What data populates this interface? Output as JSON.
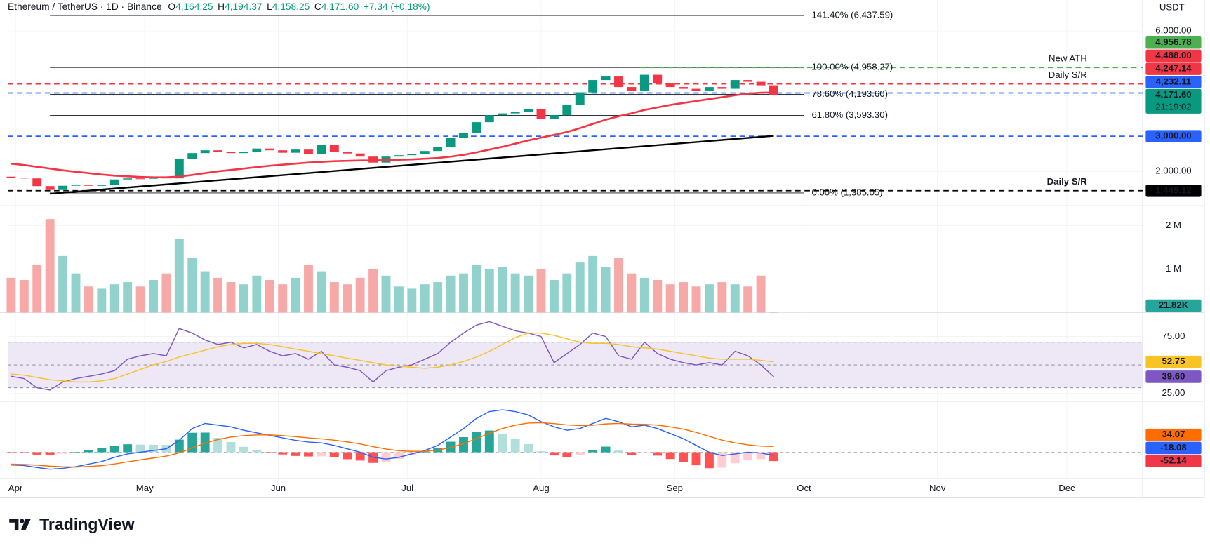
{
  "header": {
    "symbol": "Ethereum / TetherUS · 1D · Binance",
    "ohlc": [
      {
        "key": "O",
        "value": "4,164.25"
      },
      {
        "key": "H",
        "value": "4,194.37"
      },
      {
        "key": "L",
        "value": "4,158.25"
      },
      {
        "key": "C",
        "value": "4,171.60"
      }
    ],
    "change": "+7.34 (+0.18%)"
  },
  "currency": "USDT",
  "brand": "TradingView",
  "chart_data": [
    {
      "type": "candlestick",
      "x": [
        -1,
        2,
        5,
        8,
        11,
        14,
        17,
        20,
        23,
        26,
        29,
        32,
        35,
        38,
        41,
        44,
        47,
        50,
        53,
        56,
        59,
        62,
        65,
        68,
        71,
        74,
        77,
        80,
        83,
        86,
        89,
        92,
        95,
        98,
        101,
        104,
        107,
        110,
        113,
        116,
        119,
        122,
        125,
        128,
        131,
        134,
        137,
        140,
        143,
        146,
        149,
        152,
        155,
        158,
        161,
        164,
        167,
        170,
        173,
        176
      ],
      "open": [
        1850,
        1820,
        1800,
        1580,
        1470,
        1590,
        1620,
        1590,
        1610,
        1770,
        1800,
        1790,
        1840,
        1800,
        2350,
        2520,
        2600,
        2550,
        2520,
        2560,
        2650,
        2600,
        2530,
        2620,
        2500,
        2750,
        2560,
        2510,
        2420,
        2250,
        2420,
        2460,
        2500,
        2580,
        2700,
        2950,
        3100,
        3400,
        3600,
        3650,
        3700,
        3780,
        3500,
        3600,
        3900,
        4250,
        4600,
        4700,
        4400,
        4300,
        4750,
        4500,
        4400,
        4350,
        4300,
        4400,
        4350,
        4600,
        4550,
        4450
      ],
      "close": [
        1820,
        1800,
        1580,
        1470,
        1590,
        1620,
        1590,
        1610,
        1770,
        1800,
        1790,
        1840,
        1800,
        2350,
        2520,
        2600,
        2550,
        2520,
        2560,
        2650,
        2600,
        2530,
        2620,
        2500,
        2750,
        2560,
        2510,
        2420,
        2250,
        2420,
        2460,
        2500,
        2580,
        2700,
        2950,
        3100,
        3400,
        3600,
        3650,
        3700,
        3780,
        3500,
        3600,
        3900,
        4250,
        4600,
        4700,
        4400,
        4300,
        4750,
        4500,
        4400,
        4350,
        4300,
        4400,
        4350,
        4600,
        4550,
        4450,
        4171.6
      ],
      "up_color": "#089981",
      "down_color": "#f23645",
      "ema": {
        "color": "#f23645",
        "last_label": "4,247.14",
        "values": [
          2220,
          2180,
          2130,
          2080,
          2030,
          1990,
          1950,
          1910,
          1880,
          1860,
          1840,
          1830,
          1830,
          1850,
          1900,
          1950,
          2000,
          2040,
          2080,
          2120,
          2160,
          2190,
          2220,
          2250,
          2270,
          2290,
          2300,
          2310,
          2310,
          2320,
          2330,
          2340,
          2360,
          2380,
          2420,
          2470,
          2540,
          2620,
          2700,
          2790,
          2880,
          2960,
          3040,
          3120,
          3230,
          3350,
          3470,
          3570,
          3650,
          3750,
          3820,
          3890,
          3950,
          4000,
          4060,
          4110,
          4170,
          4210,
          4240,
          4247.14
        ]
      },
      "trendline": {
        "x": [
          8,
          176
        ],
        "values": [
          1363,
          3011
        ]
      },
      "fib_x": [
        8,
        183
      ],
      "fib_levels": [
        {
          "value": 6437.59,
          "label": "141.40% (6,437.59)"
        },
        {
          "value": 4958.27,
          "label": "100.00% (4,958.27)"
        },
        {
          "value": 4193.6,
          "label": "78.60% (4,193.60)"
        },
        {
          "value": 3593.3,
          "label": "61.80% (3,593.30)"
        },
        {
          "value": 1385.05,
          "label": "0.00% (1,385.05)"
        }
      ],
      "levels": [
        {
          "value": 4956.78,
          "label": "4,956.78",
          "color": "#4caf50",
          "note": "New ATH",
          "x_start": 145
        },
        {
          "value": 4488,
          "label": "4,488.00",
          "color": "#f23645",
          "note": "Daily S/R"
        },
        {
          "value": 4232.11,
          "label": "4,232.11",
          "color": "#2962ff"
        },
        {
          "value": 3000,
          "label": "3,000.00",
          "color": "#2962ff"
        },
        {
          "value": 1449.12,
          "label": "1,449.12",
          "color": "#000000",
          "note": "Daily S/R"
        }
      ],
      "last": {
        "value": 4171.6,
        "label": "4,171.60",
        "countdown": "21:19:02",
        "color": "#089981"
      },
      "ylim": [
        1055,
        6879
      ],
      "yticks": [
        {
          "value": 6000,
          "label": "6,000.00"
        },
        {
          "value": 2000,
          "label": "2,000.00"
        }
      ]
    },
    {
      "type": "bar",
      "values": [
        800000,
        750000,
        1100000,
        2150000,
        1300000,
        900000,
        600000,
        550000,
        650000,
        700000,
        600000,
        750000,
        900000,
        1700000,
        1250000,
        950000,
        800000,
        700000,
        650000,
        850000,
        750000,
        650000,
        800000,
        1100000,
        950000,
        700000,
        650000,
        800000,
        1000000,
        850000,
        600000,
        550000,
        650000,
        700000,
        850000,
        900000,
        1100000,
        1000000,
        1050000,
        900000,
        850000,
        1000000,
        750000,
        900000,
        1150000,
        1300000,
        1050000,
        1250000,
        900000,
        800000,
        750000,
        650000,
        700000,
        600000,
        650000,
        700000,
        650000,
        600000,
        850000,
        21820
      ],
      "current": {
        "value": 21820,
        "label": "21.82K"
      },
      "box_color": "#26a69a",
      "up_color": "#92d2cc",
      "down_color": "#f7a9a7",
      "ylim": [
        0,
        2430000
      ],
      "yticks": [
        {
          "value": 2000000,
          "label": "2 M"
        },
        {
          "value": 1000000,
          "label": "1 M"
        }
      ]
    },
    {
      "type": "line",
      "series": [
        {
          "color": "#7e57c2",
          "last_label": "39.60",
          "values": [
            40,
            38,
            30,
            28,
            35,
            38,
            40,
            42,
            45,
            55,
            58,
            60,
            58,
            82,
            78,
            72,
            68,
            70,
            65,
            68,
            62,
            58,
            60,
            55,
            62,
            50,
            48,
            45,
            35,
            45,
            48,
            50,
            55,
            60,
            70,
            78,
            85,
            88,
            84,
            80,
            78,
            75,
            52,
            60,
            68,
            78,
            75,
            58,
            55,
            70,
            60,
            55,
            52,
            50,
            52,
            50,
            62,
            58,
            50,
            39.6
          ]
        },
        {
          "color": "#f7c325",
          "last_label": "52.75",
          "values": [
            42,
            41,
            39,
            37,
            36,
            35,
            35,
            36,
            38,
            42,
            46,
            50,
            53,
            57,
            60,
            63,
            66,
            68,
            69,
            69,
            68,
            66,
            64,
            62,
            60,
            58,
            56,
            54,
            52,
            50,
            49,
            48,
            47,
            48,
            50,
            53,
            57,
            62,
            68,
            74,
            78,
            78,
            76,
            73,
            70,
            69,
            69,
            68,
            66,
            65,
            64,
            62,
            60,
            58,
            56,
            55,
            55,
            55,
            54,
            52.75
          ]
        }
      ],
      "levels": [
        70,
        50,
        30
      ],
      "band_color": "#ede7f6",
      "ylim": [
        18,
        96
      ],
      "yticks": [
        {
          "value": 75,
          "label": "75.00"
        },
        {
          "value": 25,
          "label": "25.00"
        }
      ]
    },
    {
      "type": "combo",
      "series": [
        {
          "type": "bar",
          "colors": [
            "#26a69a",
            "#b2dfdb",
            "#ffcdd2",
            "#ff5252"
          ],
          "box_color": "#f23645",
          "last_label": "-52.14",
          "values": [
            -5,
            -6,
            -14,
            -18,
            -9,
            2,
            14,
            24,
            39,
            47,
            45,
            44,
            43,
            74,
            115,
            116,
            85,
            60,
            32,
            13,
            -2,
            -13,
            -22,
            -25,
            -24,
            -31,
            -41,
            -49,
            -63,
            -59,
            -39,
            -15,
            4,
            27,
            62,
            89,
            120,
            128,
            110,
            80,
            48,
            6,
            -19,
            -31,
            -17,
            11,
            33,
            10,
            -16,
            -5,
            -20,
            -40,
            -56,
            -77,
            -94,
            -91,
            -65,
            -44,
            -41,
            -52.14
          ]
        },
        {
          "type": "line",
          "color": "#2962ff",
          "last_label": "-18.08",
          "values": [
            -75,
            -78,
            -90,
            -100,
            -95,
            -85,
            -70,
            -55,
            -30,
            -10,
            0,
            10,
            20,
            70,
            140,
            170,
            160,
            150,
            130,
            115,
            100,
            85,
            70,
            60,
            55,
            40,
            20,
            0,
            -30,
            -40,
            -30,
            -10,
            10,
            40,
            90,
            140,
            200,
            240,
            250,
            240,
            220,
            180,
            150,
            130,
            140,
            170,
            200,
            180,
            150,
            160,
            140,
            110,
            80,
            40,
            0,
            -20,
            -10,
            0,
            -5,
            -18.08
          ]
        },
        {
          "type": "line",
          "color": "#ff6d00",
          "last_label": "34.07",
          "values": [
            -70,
            -72,
            -76,
            -82,
            -86,
            -87,
            -84,
            -79,
            -69,
            -57,
            -45,
            -34,
            -23,
            -4,
            25,
            54,
            75,
            90,
            98,
            102,
            102,
            98,
            92,
            85,
            79,
            71,
            61,
            49,
            33,
            19,
            9,
            5,
            6,
            13,
            28,
            51,
            80,
            112,
            140,
            160,
            172,
            174,
            169,
            161,
            157,
            159,
            167,
            170,
            166,
            165,
            160,
            150,
            136,
            117,
            94,
            71,
            55,
            44,
            36,
            34.07
          ]
        }
      ],
      "ylim": [
        -155,
        300
      ],
      "xlim": [
        -1.8,
        261.6
      ],
      "xticks": [
        {
          "value": 0,
          "label": "Apr"
        },
        {
          "value": 30,
          "label": "May"
        },
        {
          "value": 61,
          "label": "Jun"
        },
        {
          "value": 91,
          "label": "Jul"
        },
        {
          "value": 122,
          "label": "Aug"
        },
        {
          "value": 153,
          "label": "Sep"
        },
        {
          "value": 183,
          "label": "Oct"
        },
        {
          "value": 214,
          "label": "Nov"
        },
        {
          "value": 244,
          "label": "Dec"
        }
      ]
    }
  ]
}
